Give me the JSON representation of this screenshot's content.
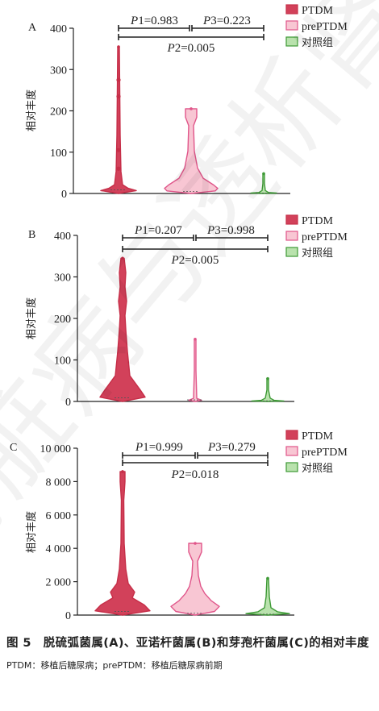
{
  "figure_caption": {
    "title": "图 5　脱硫弧菌属(A)、亚诺杆菌属(B)和芽孢杆菌属(C)的相对丰度",
    "note": "PTDM：移植后糖尿病；prePTDM：移植后糖尿病前期"
  },
  "watermark_text": "肾脏病与透析肾移植杂志",
  "colors": {
    "ptdm_fill": "#d2415a",
    "ptdm_line": "#c62e48",
    "preptdm_fill": "#f8c6d3",
    "preptdm_line": "#e0568a",
    "control_fill": "#b9e2ad",
    "control_line": "#3e9a36"
  },
  "chart_data": [
    {
      "type": "violin",
      "panel": "A",
      "ylabel": "相对丰度",
      "ylim": [
        0,
        400
      ],
      "yticks": [
        "0",
        "100",
        "200",
        "300",
        "400"
      ],
      "legend": [
        "PTDM",
        "prePTDM",
        "对照组"
      ],
      "legend_placement": "top-right",
      "comparisons": [
        {
          "label": "P1",
          "value": "0.983"
        },
        {
          "label": "P3",
          "value": "0.223"
        },
        {
          "label": "P2",
          "value": "0.005"
        }
      ],
      "series": [
        {
          "name": "PTDM",
          "max": 355,
          "outliers": [
            275,
            235,
            105,
            60
          ]
        },
        {
          "name": "prePTDM",
          "max": 205
        },
        {
          "name": "对照组",
          "max": 48
        }
      ]
    },
    {
      "type": "violin",
      "panel": "B",
      "ylabel": "相对丰度",
      "ylim": [
        0,
        400
      ],
      "yticks": [
        "0",
        "100",
        "200",
        "300",
        "400"
      ],
      "legend": [
        "PTDM",
        "prePTDM",
        "对照组"
      ],
      "legend_placement": "top-right",
      "comparisons": [
        {
          "label": "P1",
          "value": "0.207"
        },
        {
          "label": "P3",
          "value": "0.998"
        },
        {
          "label": "P2",
          "value": "0.005"
        }
      ],
      "series": [
        {
          "name": "PTDM",
          "max": 345
        },
        {
          "name": "prePTDM",
          "max": 150
        },
        {
          "name": "对照组",
          "max": 55
        }
      ]
    },
    {
      "type": "violin",
      "panel": "C",
      "ylabel": "相对丰度",
      "ylim": [
        0,
        10000
      ],
      "yticks": [
        "0",
        "2 000",
        "4 000",
        "6 000",
        "8 000",
        "10 000"
      ],
      "legend": [
        "PTDM",
        "prePTDM",
        "对照组"
      ],
      "legend_placement": "top-right",
      "comparisons": [
        {
          "label": "P1",
          "value": "0.999"
        },
        {
          "label": "P3",
          "value": "0.279"
        },
        {
          "label": "P2",
          "value": "0.018"
        }
      ],
      "series": [
        {
          "name": "PTDM",
          "max": 8600
        },
        {
          "name": "prePTDM",
          "max": 4300
        },
        {
          "name": "对照组",
          "max": 2200
        }
      ]
    }
  ]
}
